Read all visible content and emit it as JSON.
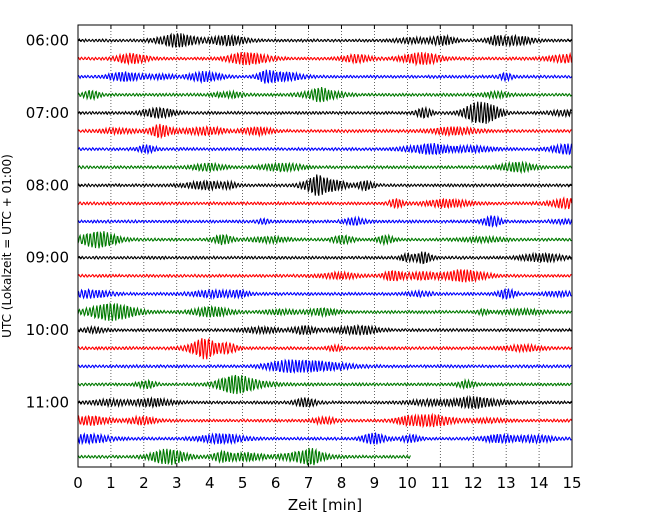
{
  "chart_data": {
    "type": "line",
    "xlabel": "Zeit  [min]",
    "ylabel": "UTC (Lokalzeit = UTC + 01:00)",
    "xlim": [
      0,
      15
    ],
    "x_ticks": [
      "0",
      "1",
      "2",
      "3",
      "4",
      "5",
      "6",
      "7",
      "8",
      "9",
      "10",
      "11",
      "12",
      "13",
      "14",
      "15"
    ],
    "y_ticks": [
      "06:00",
      "07:00",
      "08:00",
      "09:00",
      "10:00",
      "11:00"
    ],
    "grid": "vertical dotted lines at each minute",
    "trace_minutes": 15,
    "trace_colors": [
      "#000000",
      "#ff0000",
      "#0000ff",
      "#007a00"
    ],
    "traces": [
      {
        "start": "06:00",
        "end_min": 15
      },
      {
        "start": "06:15",
        "end_min": 15
      },
      {
        "start": "06:30",
        "end_min": 15
      },
      {
        "start": "06:45",
        "end_min": 15
      },
      {
        "start": "07:00",
        "end_min": 15
      },
      {
        "start": "07:15",
        "end_min": 15
      },
      {
        "start": "07:30",
        "end_min": 15
      },
      {
        "start": "07:45",
        "end_min": 15
      },
      {
        "start": "08:00",
        "end_min": 15
      },
      {
        "start": "08:15",
        "end_min": 15
      },
      {
        "start": "08:30",
        "end_min": 15
      },
      {
        "start": "08:45",
        "end_min": 15
      },
      {
        "start": "09:00",
        "end_min": 15
      },
      {
        "start": "09:15",
        "end_min": 15
      },
      {
        "start": "09:30",
        "end_min": 15
      },
      {
        "start": "09:45",
        "end_min": 15
      },
      {
        "start": "10:00",
        "end_min": 15
      },
      {
        "start": "10:15",
        "end_min": 15
      },
      {
        "start": "10:30",
        "end_min": 15
      },
      {
        "start": "10:45",
        "end_min": 15
      },
      {
        "start": "11:00",
        "end_min": 15
      },
      {
        "start": "11:15",
        "end_min": 15
      },
      {
        "start": "11:30",
        "end_min": 15
      },
      {
        "start": "11:45",
        "end_min": 10.1
      }
    ]
  }
}
